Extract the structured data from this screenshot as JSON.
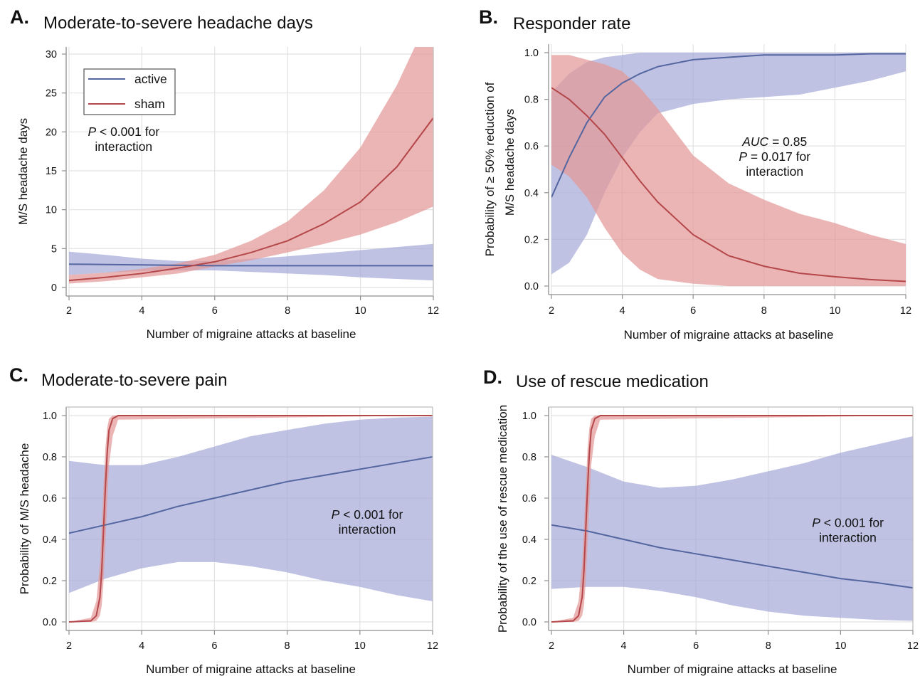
{
  "colors": {
    "active_line": "#5466a0",
    "active_band": "#a6abd8",
    "sham_line": "#b4474a",
    "sham_band": "#e49898"
  },
  "legend": {
    "active_label": "active",
    "sham_label": "sham"
  },
  "chart_data": [
    {
      "id": "A",
      "type": "line",
      "letter": "A.",
      "title": "Moderate-to-severe headache days",
      "xlabel": "Number of migraine attacks at baseline",
      "ylabel": "M/S headache days",
      "xlim": [
        2,
        12
      ],
      "ylim": [
        0,
        30
      ],
      "xticks": [
        2,
        4,
        6,
        8,
        10,
        12
      ],
      "yticks": [
        0,
        5,
        10,
        15,
        20,
        25,
        30
      ],
      "ytick_labels": [
        "0",
        "5",
        "10",
        "15",
        "20",
        "25",
        "30"
      ],
      "grid": true,
      "legend_position": "top-left",
      "annotation": {
        "italic": "P",
        "rest": " < 0.001 for",
        "line2": "interaction",
        "x": 3.5,
        "y": 19.5
      },
      "series": [
        {
          "name": "active",
          "x": [
            2,
            3,
            4,
            5,
            6,
            7,
            8,
            9,
            10,
            11,
            12
          ],
          "y": [
            3.0,
            2.95,
            2.9,
            2.85,
            2.8,
            2.8,
            2.8,
            2.8,
            2.8,
            2.8,
            2.8
          ],
          "lower": [
            1.6,
            1.9,
            2.1,
            2.2,
            2.2,
            2.0,
            1.8,
            1.6,
            1.3,
            1.1,
            0.9
          ],
          "upper": [
            4.6,
            4.2,
            3.7,
            3.4,
            3.4,
            3.7,
            4.0,
            4.4,
            4.8,
            5.2,
            5.6
          ]
        },
        {
          "name": "sham",
          "x": [
            2,
            3,
            4,
            5,
            6,
            7,
            8,
            9,
            10,
            11,
            12
          ],
          "y": [
            0.9,
            1.3,
            1.8,
            2.5,
            3.3,
            4.5,
            6.0,
            8.2,
            11.0,
            15.5,
            21.8
          ],
          "lower": [
            0.5,
            0.8,
            1.3,
            1.8,
            2.7,
            3.5,
            4.5,
            5.6,
            6.8,
            8.4,
            10.4
          ],
          "upper": [
            1.6,
            1.9,
            2.4,
            3.1,
            4.2,
            6.0,
            8.5,
            12.5,
            18.0,
            26.0,
            36.0
          ]
        }
      ]
    },
    {
      "id": "B",
      "type": "line",
      "letter": "B.",
      "title": "Responder rate",
      "xlabel": "Number of migraine attacks at baseline",
      "ylabel_line1": "Probability of ≥ 50% reduction of",
      "ylabel_line2": "M/S headache days",
      "xlim": [
        2,
        12
      ],
      "ylim": [
        0,
        1
      ],
      "xticks": [
        2,
        4,
        6,
        8,
        10,
        12
      ],
      "yticks": [
        0,
        0.2,
        0.4,
        0.6,
        0.8,
        1.0
      ],
      "ytick_labels": [
        "0.0",
        "0.2",
        "0.4",
        "0.6",
        "0.8",
        "1.0"
      ],
      "grid": true,
      "annotation": {
        "italic": "AUC",
        "rest": " = 0.85",
        "line2_italic": "P",
        "line2_rest": " = 0.017 for",
        "line3": "interaction",
        "x": 8.3,
        "y": 0.6
      },
      "series": [
        {
          "name": "active",
          "x": [
            2,
            2.5,
            3,
            3.5,
            4,
            4.5,
            5,
            6,
            7,
            8,
            9,
            10,
            11,
            12
          ],
          "y": [
            0.38,
            0.55,
            0.7,
            0.81,
            0.87,
            0.91,
            0.94,
            0.97,
            0.98,
            0.99,
            0.99,
            0.99,
            0.995,
            0.995
          ],
          "lower": [
            0.05,
            0.1,
            0.22,
            0.4,
            0.55,
            0.66,
            0.74,
            0.78,
            0.8,
            0.81,
            0.82,
            0.85,
            0.88,
            0.92
          ],
          "upper": [
            0.83,
            0.91,
            0.96,
            0.98,
            0.99,
            1.0,
            1.0,
            1.0,
            1.0,
            1.0,
            1.0,
            1.0,
            1.0,
            1.0
          ]
        },
        {
          "name": "sham",
          "x": [
            2,
            2.5,
            3,
            3.5,
            4,
            4.5,
            5,
            6,
            7,
            8,
            9,
            10,
            11,
            12
          ],
          "y": [
            0.85,
            0.8,
            0.73,
            0.65,
            0.55,
            0.45,
            0.36,
            0.22,
            0.13,
            0.085,
            0.055,
            0.04,
            0.028,
            0.02
          ],
          "lower": [
            0.52,
            0.47,
            0.38,
            0.25,
            0.14,
            0.07,
            0.03,
            0.01,
            0.0,
            0.0,
            0.0,
            0.0,
            0.0,
            0.0
          ],
          "upper": [
            0.99,
            0.99,
            0.97,
            0.95,
            0.92,
            0.85,
            0.76,
            0.56,
            0.44,
            0.37,
            0.31,
            0.27,
            0.22,
            0.18
          ]
        }
      ]
    },
    {
      "id": "C",
      "type": "line",
      "letter": "C.",
      "title": "Moderate-to-severe pain",
      "xlabel": "Number of migraine attacks at baseline",
      "ylabel": "Probability of M/S headache",
      "xlim": [
        2,
        12
      ],
      "ylim": [
        0,
        1
      ],
      "xticks": [
        2,
        4,
        6,
        8,
        10,
        12
      ],
      "yticks": [
        0,
        0.2,
        0.4,
        0.6,
        0.8,
        1.0
      ],
      "ytick_labels": [
        "0.0",
        "0.2",
        "0.4",
        "0.6",
        "0.8",
        "1.0"
      ],
      "grid": true,
      "annotation": {
        "italic": "P",
        "rest": " < 0.001 for",
        "line2": "interaction",
        "x": 10.2,
        "y": 0.5
      },
      "series": [
        {
          "name": "active",
          "x": [
            2,
            3,
            4,
            5,
            6,
            7,
            8,
            9,
            10,
            11,
            12
          ],
          "y": [
            0.43,
            0.47,
            0.51,
            0.56,
            0.6,
            0.64,
            0.68,
            0.71,
            0.74,
            0.77,
            0.8
          ],
          "lower": [
            0.14,
            0.21,
            0.26,
            0.29,
            0.29,
            0.27,
            0.24,
            0.2,
            0.17,
            0.13,
            0.1
          ],
          "upper": [
            0.78,
            0.76,
            0.76,
            0.8,
            0.85,
            0.9,
            0.93,
            0.96,
            0.98,
            0.99,
            0.995
          ]
        },
        {
          "name": "sham",
          "x": [
            2,
            2.6,
            2.75,
            2.85,
            2.9,
            2.95,
            3.0,
            3.05,
            3.1,
            3.2,
            3.35,
            12
          ],
          "y": [
            0.0,
            0.005,
            0.03,
            0.12,
            0.25,
            0.45,
            0.65,
            0.82,
            0.93,
            0.985,
            1.0,
            1.0
          ],
          "lower": [
            0.0,
            0.0,
            0.005,
            0.03,
            0.08,
            0.2,
            0.38,
            0.58,
            0.76,
            0.9,
            0.98,
            1.0
          ],
          "upper": [
            0.0,
            0.02,
            0.1,
            0.28,
            0.46,
            0.66,
            0.84,
            0.94,
            0.985,
            1.0,
            1.0,
            1.0
          ]
        }
      ]
    },
    {
      "id": "D",
      "type": "line",
      "letter": "D.",
      "title": "Use of rescue medication",
      "xlabel": "Number of migraine attacks at baseline",
      "ylabel": "Probability of the use of rescue medication",
      "xlim": [
        2,
        12
      ],
      "ylim": [
        0,
        1
      ],
      "xticks": [
        2,
        4,
        6,
        8,
        10,
        12
      ],
      "yticks": [
        0,
        0.2,
        0.4,
        0.6,
        0.8,
        1.0
      ],
      "ytick_labels": [
        "0.0",
        "0.2",
        "0.4",
        "0.6",
        "0.8",
        "1.0"
      ],
      "grid": true,
      "annotation": {
        "italic": "P",
        "rest": " < 0.001 for",
        "line2": "interaction",
        "x": 10.2,
        "y": 0.46
      },
      "series": [
        {
          "name": "active",
          "x": [
            2,
            3,
            4,
            5,
            6,
            7,
            8,
            9,
            10,
            11,
            12
          ],
          "y": [
            0.47,
            0.44,
            0.4,
            0.36,
            0.33,
            0.3,
            0.27,
            0.24,
            0.21,
            0.19,
            0.165
          ],
          "lower": [
            0.16,
            0.17,
            0.17,
            0.15,
            0.12,
            0.08,
            0.05,
            0.03,
            0.02,
            0.01,
            0.005
          ],
          "upper": [
            0.81,
            0.75,
            0.68,
            0.65,
            0.66,
            0.69,
            0.73,
            0.77,
            0.82,
            0.86,
            0.9
          ]
        },
        {
          "name": "sham",
          "x": [
            2,
            2.6,
            2.75,
            2.85,
            2.9,
            2.95,
            3.0,
            3.05,
            3.1,
            3.2,
            3.35,
            12
          ],
          "y": [
            0.0,
            0.005,
            0.03,
            0.12,
            0.25,
            0.45,
            0.65,
            0.82,
            0.93,
            0.985,
            1.0,
            1.0
          ],
          "lower": [
            0.0,
            0.0,
            0.005,
            0.03,
            0.08,
            0.2,
            0.38,
            0.58,
            0.76,
            0.9,
            0.98,
            1.0
          ],
          "upper": [
            0.0,
            0.02,
            0.1,
            0.28,
            0.46,
            0.66,
            0.84,
            0.94,
            0.985,
            1.0,
            1.0,
            1.0
          ]
        }
      ]
    }
  ]
}
